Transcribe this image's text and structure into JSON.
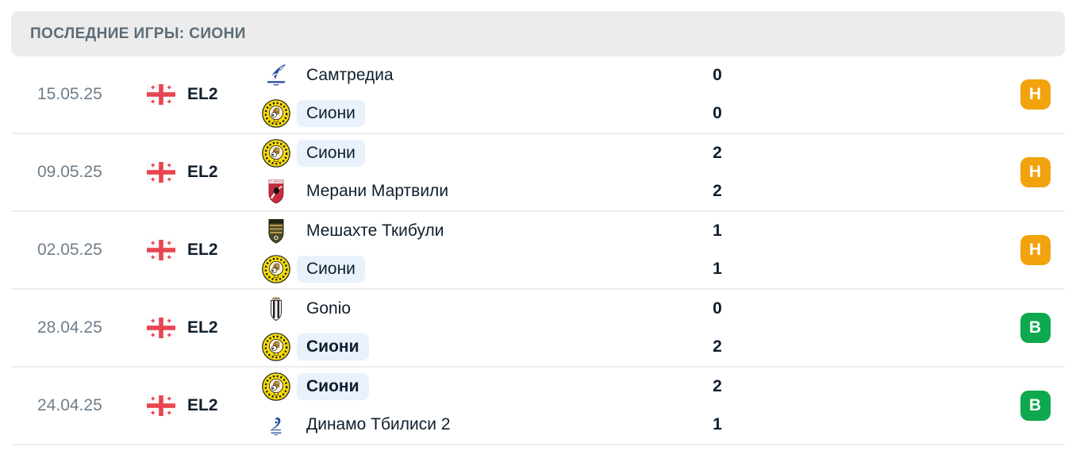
{
  "header": {
    "title": "ПОСЛЕДНИЕ ИГРЫ: СИОНИ"
  },
  "colors": {
    "draw_badge": "#F2A20D",
    "win_badge": "#0EA94E",
    "team_highlight": "#E9F1FC",
    "header_bg": "#ECECEC",
    "date_text": "#6E7D8A",
    "main_text": "#0F1E2D"
  },
  "matches": [
    {
      "date": "15.05.25",
      "league": "EL2",
      "flag": "flag-georgia",
      "teams": [
        {
          "name": "Самтредиа",
          "logo": "samtredia",
          "score": "0",
          "highlight": "false",
          "bold": "false"
        },
        {
          "name": "Сиони",
          "logo": "sioni",
          "score": "0",
          "highlight": "true",
          "bold": "false"
        }
      ],
      "result": {
        "label": "Н",
        "type": "draw"
      }
    },
    {
      "date": "09.05.25",
      "league": "EL2",
      "flag": "flag-georgia",
      "teams": [
        {
          "name": "Сиони",
          "logo": "sioni",
          "score": "2",
          "highlight": "true",
          "bold": "false"
        },
        {
          "name": "Мерани Мартвили",
          "logo": "merani",
          "score": "2",
          "highlight": "false",
          "bold": "false"
        }
      ],
      "result": {
        "label": "Н",
        "type": "draw"
      }
    },
    {
      "date": "02.05.25",
      "league": "EL2",
      "flag": "flag-georgia",
      "teams": [
        {
          "name": "Мешахте Ткибули",
          "logo": "meshakhte",
          "score": "1",
          "highlight": "false",
          "bold": "false"
        },
        {
          "name": "Сиони",
          "logo": "sioni",
          "score": "1",
          "highlight": "true",
          "bold": "false"
        }
      ],
      "result": {
        "label": "Н",
        "type": "draw"
      }
    },
    {
      "date": "28.04.25",
      "league": "EL2",
      "flag": "flag-georgia",
      "teams": [
        {
          "name": "Gonio",
          "logo": "gonio",
          "score": "0",
          "highlight": "false",
          "bold": "false"
        },
        {
          "name": "Сиони",
          "logo": "sioni",
          "score": "2",
          "highlight": "true",
          "bold": "true"
        }
      ],
      "result": {
        "label": "В",
        "type": "win"
      }
    },
    {
      "date": "24.04.25",
      "league": "EL2",
      "flag": "flag-georgia",
      "teams": [
        {
          "name": "Сиони",
          "logo": "sioni",
          "score": "2",
          "highlight": "true",
          "bold": "true"
        },
        {
          "name": "Динамо Тбилиси 2",
          "logo": "dinamo-tbilisi-2",
          "score": "1",
          "highlight": "false",
          "bold": "false"
        }
      ],
      "result": {
        "label": "В",
        "type": "win"
      }
    }
  ]
}
